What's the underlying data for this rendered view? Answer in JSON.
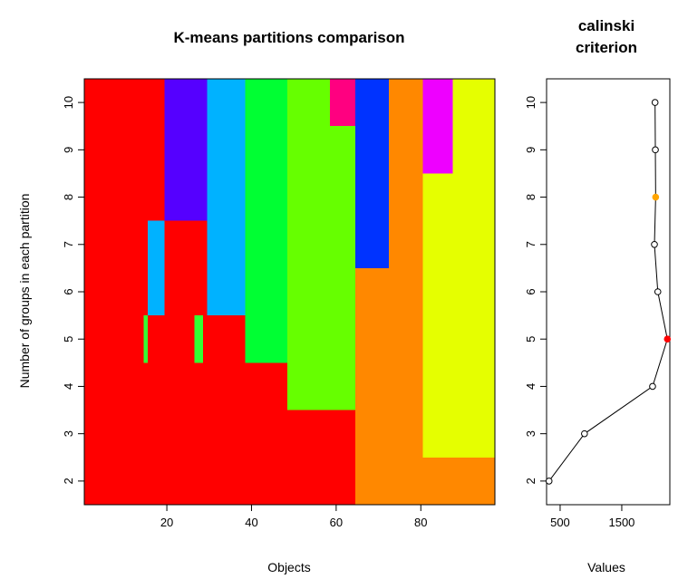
{
  "chart_data": [
    {
      "type": "heatmap",
      "title": "K-means partitions comparison",
      "xlabel": "Objects",
      "ylabel": "Number of groups in each partition",
      "xlim": [
        0.5,
        97.5
      ],
      "ylim": [
        1.5,
        10.5
      ],
      "x_ticks": [
        20,
        40,
        60,
        80
      ],
      "y_ticks": [
        2,
        3,
        4,
        5,
        6,
        7,
        8,
        9,
        10
      ],
      "grid": false,
      "cells": [
        {
          "x0": 0.5,
          "x1": 64.5,
          "y0": 1.5,
          "y1": 3.5,
          "color": "#ff0000"
        },
        {
          "x0": 64.5,
          "x1": 97.5,
          "y0": 1.5,
          "y1": 2.5,
          "color": "#ff8800"
        },
        {
          "x0": 64.5,
          "x1": 80.5,
          "y0": 2.5,
          "y1": 6.5,
          "color": "#ff8800"
        },
        {
          "x0": 80.5,
          "x1": 97.5,
          "y0": 2.5,
          "y1": 8.5,
          "color": "#e5ff00"
        },
        {
          "x0": 0.5,
          "x1": 48.5,
          "y0": 3.5,
          "y1": 4.5,
          "color": "#ff0000"
        },
        {
          "x0": 48.5,
          "x1": 64.5,
          "y0": 3.5,
          "y1": 9.5,
          "color": "#66ff00"
        },
        {
          "x0": 0.5,
          "x1": 14.5,
          "y0": 4.5,
          "y1": 10.5,
          "color": "#ff0000"
        },
        {
          "x0": 14.5,
          "x1": 15.5,
          "y0": 4.5,
          "y1": 5.5,
          "color": "#33ff33"
        },
        {
          "x0": 15.5,
          "x1": 26.5,
          "y0": 4.5,
          "y1": 5.5,
          "color": "#ff0000"
        },
        {
          "x0": 26.5,
          "x1": 28.5,
          "y0": 4.5,
          "y1": 5.5,
          "color": "#33ff33"
        },
        {
          "x0": 28.5,
          "x1": 38.5,
          "y0": 4.5,
          "y1": 5.5,
          "color": "#ff0000"
        },
        {
          "x0": 38.5,
          "x1": 48.5,
          "y0": 4.5,
          "y1": 10.5,
          "color": "#00ff33"
        },
        {
          "x0": 14.5,
          "x1": 15.5,
          "y0": 5.5,
          "y1": 10.5,
          "color": "#ff0000"
        },
        {
          "x0": 15.5,
          "x1": 19.5,
          "y0": 5.5,
          "y1": 7.5,
          "color": "#00b2ff"
        },
        {
          "x0": 19.5,
          "x1": 29.5,
          "y0": 5.5,
          "y1": 7.5,
          "color": "#ff0000"
        },
        {
          "x0": 29.5,
          "x1": 38.5,
          "y0": 5.5,
          "y1": 10.5,
          "color": "#00b2ff"
        },
        {
          "x0": 15.5,
          "x1": 19.5,
          "y0": 7.5,
          "y1": 10.5,
          "color": "#ff0000"
        },
        {
          "x0": 19.5,
          "x1": 29.5,
          "y0": 7.5,
          "y1": 10.5,
          "color": "#5500ff"
        },
        {
          "x0": 64.5,
          "x1": 72.5,
          "y0": 6.5,
          "y1": 10.5,
          "color": "#0033ff"
        },
        {
          "x0": 72.5,
          "x1": 80.5,
          "y0": 6.5,
          "y1": 10.5,
          "color": "#ff8800"
        },
        {
          "x0": 80.5,
          "x1": 87.5,
          "y0": 8.5,
          "y1": 10.5,
          "color": "#ee00ff"
        },
        {
          "x0": 87.5,
          "x1": 97.5,
          "y0": 8.5,
          "y1": 10.5,
          "color": "#e5ff00"
        },
        {
          "x0": 48.5,
          "x1": 58.5,
          "y0": 9.5,
          "y1": 10.5,
          "color": "#66ff00"
        },
        {
          "x0": 58.5,
          "x1": 64.5,
          "y0": 9.5,
          "y1": 10.5,
          "color": "#ff0080"
        }
      ]
    },
    {
      "type": "line",
      "title_lines": [
        "calinski",
        "criterion"
      ],
      "xlabel": "Values",
      "ylabel": "",
      "x_ticks": [
        500,
        1500
      ],
      "y_ticks": [
        2,
        3,
        4,
        5,
        6,
        7,
        8,
        9,
        10
      ],
      "xlim": [
        280,
        2280
      ],
      "ylim": [
        1.5,
        10.5
      ],
      "points": [
        {
          "x": 320,
          "y": 2,
          "fill": "#ffffff"
        },
        {
          "x": 895,
          "y": 3,
          "fill": "#ffffff"
        },
        {
          "x": 2000,
          "y": 4,
          "fill": "#ffffff"
        },
        {
          "x": 2240,
          "y": 5,
          "fill": "#ff0000"
        },
        {
          "x": 2085,
          "y": 6,
          "fill": "#ffffff"
        },
        {
          "x": 2030,
          "y": 7,
          "fill": "#ffffff"
        },
        {
          "x": 2050,
          "y": 8,
          "fill": "#ffa500"
        },
        {
          "x": 2045,
          "y": 9,
          "fill": "#ffffff"
        },
        {
          "x": 2040,
          "y": 10,
          "fill": "#ffffff"
        }
      ]
    }
  ]
}
